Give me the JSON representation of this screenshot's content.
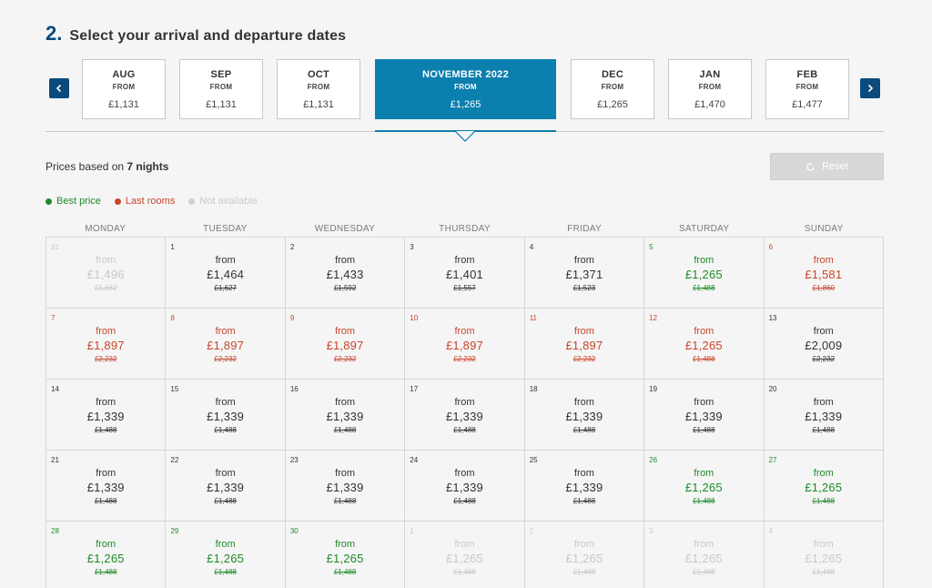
{
  "header": {
    "step_number": "2.",
    "title": "Select your arrival and departure dates"
  },
  "month_nav": {
    "prev_icon": "chevron-left-icon",
    "next_icon": "chevron-right-icon",
    "months": [
      {
        "name": "AUG",
        "from_label": "FROM",
        "price": "£1,131",
        "active": false
      },
      {
        "name": "SEP",
        "from_label": "FROM",
        "price": "£1,131",
        "active": false
      },
      {
        "name": "OCT",
        "from_label": "FROM",
        "price": "£1,131",
        "active": false
      },
      {
        "name": "NOVEMBER 2022",
        "from_label": "FROM",
        "price": "£1,265",
        "active": true
      },
      {
        "name": "DEC",
        "from_label": "FROM",
        "price": "£1,265",
        "active": false
      },
      {
        "name": "JAN",
        "from_label": "FROM",
        "price": "£1,470",
        "active": false
      },
      {
        "name": "FEB",
        "from_label": "FROM",
        "price": "£1,477",
        "active": false
      }
    ]
  },
  "nights": {
    "prefix": "Prices based on",
    "value": "7 nights"
  },
  "reset": {
    "label": "Reset",
    "icon": "refresh-icon"
  },
  "legend": [
    {
      "label": "Best price",
      "color": "#1f8a2a",
      "text_color": "#1f8a2a"
    },
    {
      "label": "Last rooms",
      "color": "#c8452c",
      "text_color": "#c8452c"
    },
    {
      "label": "Not available",
      "color": "#cfcfcf",
      "text_color": "#c9c9c9"
    }
  ],
  "weekdays": [
    "MONDAY",
    "TUESDAY",
    "WEDNESDAY",
    "THURSDAY",
    "FRIDAY",
    "SATURDAY",
    "SUNDAY"
  ],
  "colors": {
    "primary": "#0b4a7d",
    "active_month": "#0b7fae",
    "best": "#1f8a2a",
    "last": "#c8452c",
    "na": "#c9c9c9"
  },
  "days": [
    {
      "num": "31",
      "from": "from",
      "price": "£1,496",
      "orig": "£1,662",
      "status": "na"
    },
    {
      "num": "1",
      "from": "from",
      "price": "£1,464",
      "orig": "£1,627",
      "status": "normal"
    },
    {
      "num": "2",
      "from": "from",
      "price": "£1,433",
      "orig": "£1,592",
      "status": "normal"
    },
    {
      "num": "3",
      "from": "from",
      "price": "£1,401",
      "orig": "£1,557",
      "status": "normal"
    },
    {
      "num": "4",
      "from": "from",
      "price": "£1,371",
      "orig": "£1,523",
      "status": "normal"
    },
    {
      "num": "5",
      "from": "from",
      "price": "£1,265",
      "orig": "£1,488",
      "status": "best"
    },
    {
      "num": "6",
      "from": "from",
      "price": "£1,581",
      "orig": "£1,860",
      "status": "last"
    },
    {
      "num": "7",
      "from": "from",
      "price": "£1,897",
      "orig": "£2,232",
      "status": "last"
    },
    {
      "num": "8",
      "from": "from",
      "price": "£1,897",
      "orig": "£2,232",
      "status": "last"
    },
    {
      "num": "9",
      "from": "from",
      "price": "£1,897",
      "orig": "£2,232",
      "status": "last"
    },
    {
      "num": "10",
      "from": "from",
      "price": "£1,897",
      "orig": "£2,232",
      "status": "last"
    },
    {
      "num": "11",
      "from": "from",
      "price": "£1,897",
      "orig": "£2,232",
      "status": "last"
    },
    {
      "num": "12",
      "from": "from",
      "price": "£1,265",
      "orig": "£1,488",
      "status": "last"
    },
    {
      "num": "13",
      "from": "from",
      "price": "£2,009",
      "orig": "£2,232",
      "status": "normal"
    },
    {
      "num": "14",
      "from": "from",
      "price": "£1,339",
      "orig": "£1,488",
      "status": "normal"
    },
    {
      "num": "15",
      "from": "from",
      "price": "£1,339",
      "orig": "£1,488",
      "status": "normal"
    },
    {
      "num": "16",
      "from": "from",
      "price": "£1,339",
      "orig": "£1,488",
      "status": "normal"
    },
    {
      "num": "17",
      "from": "from",
      "price": "£1,339",
      "orig": "£1,488",
      "status": "normal"
    },
    {
      "num": "18",
      "from": "from",
      "price": "£1,339",
      "orig": "£1,488",
      "status": "normal"
    },
    {
      "num": "19",
      "from": "from",
      "price": "£1,339",
      "orig": "£1,488",
      "status": "normal"
    },
    {
      "num": "20",
      "from": "from",
      "price": "£1,339",
      "orig": "£1,488",
      "status": "normal"
    },
    {
      "num": "21",
      "from": "from",
      "price": "£1,339",
      "orig": "£1,488",
      "status": "normal"
    },
    {
      "num": "22",
      "from": "from",
      "price": "£1,339",
      "orig": "£1,488",
      "status": "normal"
    },
    {
      "num": "23",
      "from": "from",
      "price": "£1,339",
      "orig": "£1,488",
      "status": "normal"
    },
    {
      "num": "24",
      "from": "from",
      "price": "£1,339",
      "orig": "£1,488",
      "status": "normal"
    },
    {
      "num": "25",
      "from": "from",
      "price": "£1,339",
      "orig": "£1,488",
      "status": "normal"
    },
    {
      "num": "26",
      "from": "from",
      "price": "£1,265",
      "orig": "£1,488",
      "status": "best"
    },
    {
      "num": "27",
      "from": "from",
      "price": "£1,265",
      "orig": "£1,488",
      "status": "best"
    },
    {
      "num": "28",
      "from": "from",
      "price": "£1,265",
      "orig": "£1,488",
      "status": "best"
    },
    {
      "num": "29",
      "from": "from",
      "price": "£1,265",
      "orig": "£1,488",
      "status": "best"
    },
    {
      "num": "30",
      "from": "from",
      "price": "£1,265",
      "orig": "£1,488",
      "status": "best"
    },
    {
      "num": "1",
      "from": "from",
      "price": "£1,265",
      "orig": "£1,488",
      "status": "na"
    },
    {
      "num": "2",
      "from": "from",
      "price": "£1,265",
      "orig": "£1,488",
      "status": "na"
    },
    {
      "num": "3",
      "from": "from",
      "price": "£1,265",
      "orig": "£1,488",
      "status": "na"
    },
    {
      "num": "4",
      "from": "from",
      "price": "£1,265",
      "orig": "£1,488",
      "status": "na"
    }
  ]
}
